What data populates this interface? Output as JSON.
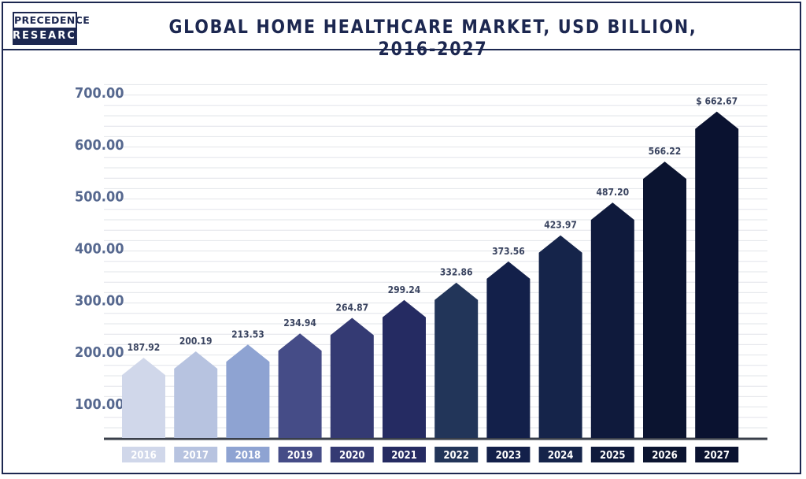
{
  "logo": {
    "line1": "PRECEDENCE",
    "line2": "RESEARCH"
  },
  "chart_data": {
    "type": "bar",
    "title": "GLOBAL HOME HEALTHCARE MARKET, USD BILLION, 2016-2027",
    "categories": [
      "2016",
      "2017",
      "2018",
      "2019",
      "2020",
      "2021",
      "2022",
      "2023",
      "2024",
      "2025",
      "2026",
      "2027"
    ],
    "values": [
      187.92,
      200.19,
      213.53,
      234.94,
      264.87,
      299.24,
      332.86,
      373.56,
      423.97,
      487.2,
      566.22,
      662.67
    ],
    "data_labels": [
      "187.92",
      "200.19",
      "213.53",
      "234.94",
      "264.87",
      "299.24",
      "332.86",
      "373.56",
      "423.97",
      "487.20",
      "566.22",
      "$ 662.67"
    ],
    "y_ticks": [
      "100.00",
      "200.00",
      "300.00",
      "400.00",
      "500.00",
      "600.00",
      "700.00"
    ],
    "y_tick_values": [
      100,
      200,
      300,
      400,
      500,
      600,
      700
    ],
    "ylim": [
      0,
      700
    ],
    "xlabel": "",
    "ylabel": "",
    "grid": true,
    "legend": "none",
    "colors": [
      "#d0d7ea",
      "#b7c3e0",
      "#8ea3d2",
      "#454c87",
      "#343a73",
      "#252b62",
      "#223559",
      "#13204a",
      "#15244a",
      "#0f1a3c",
      "#0b1430",
      "#0a1230"
    ]
  }
}
